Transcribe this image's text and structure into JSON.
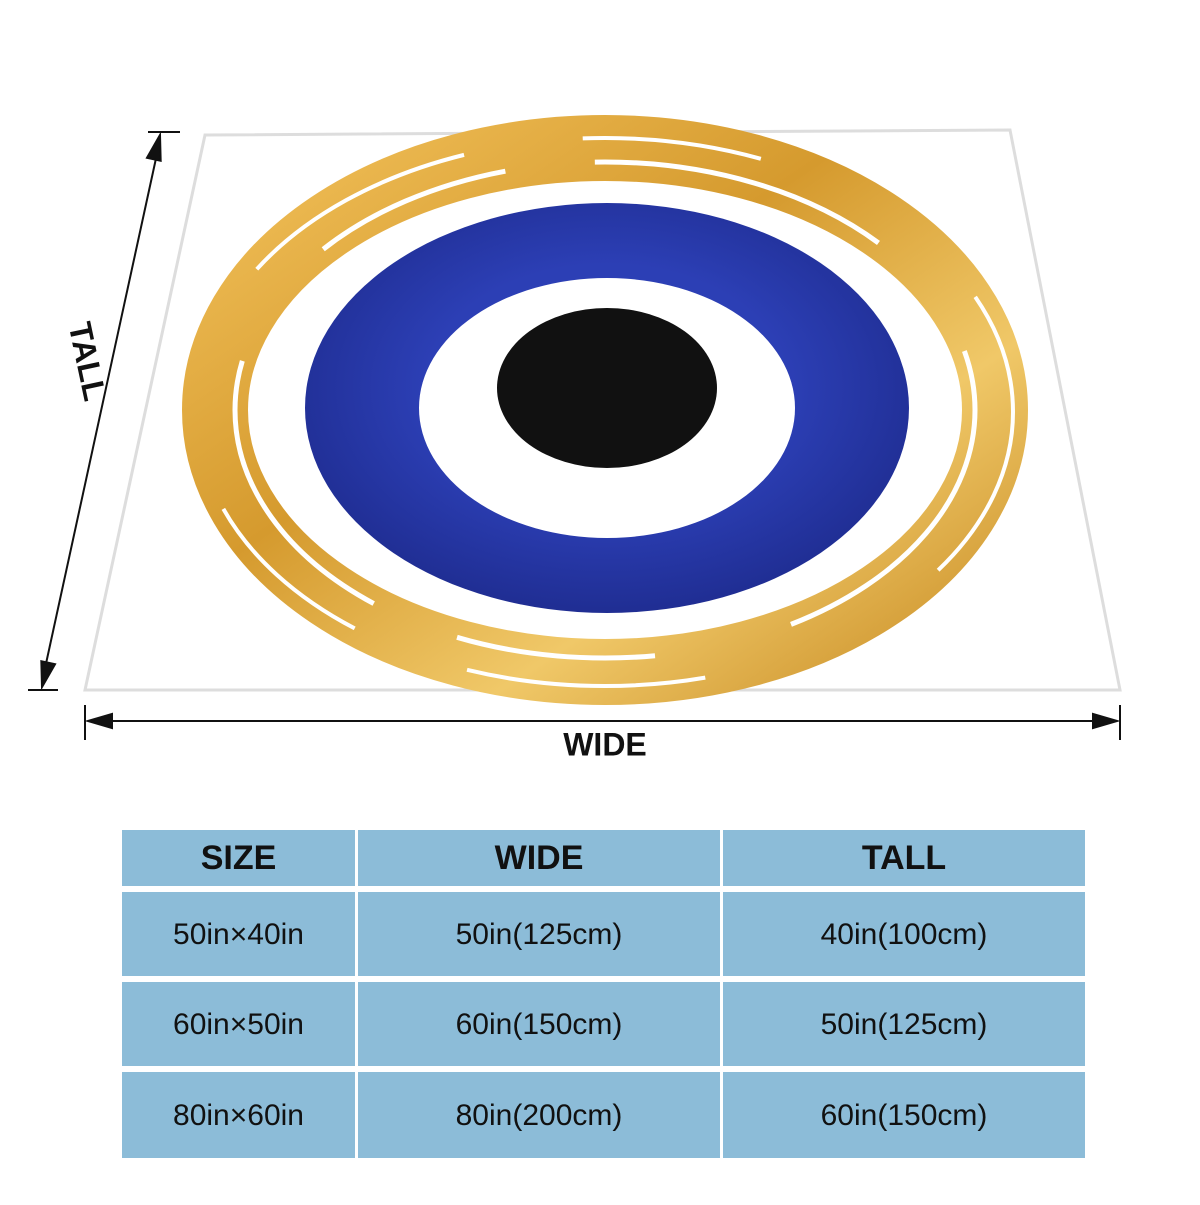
{
  "dimensions": {
    "tall": "TALL",
    "wide": "WIDE"
  },
  "table": {
    "header": [
      "SIZE",
      "WIDE",
      "TALL"
    ],
    "rows": [
      [
        "50in×40in",
        "50in(125cm)",
        "40in(100cm)"
      ],
      [
        "60in×50in",
        "60in(150cm)",
        "50in(125cm)"
      ],
      [
        "80in×60in",
        "80in(200cm)",
        "60in(150cm)"
      ]
    ]
  }
}
